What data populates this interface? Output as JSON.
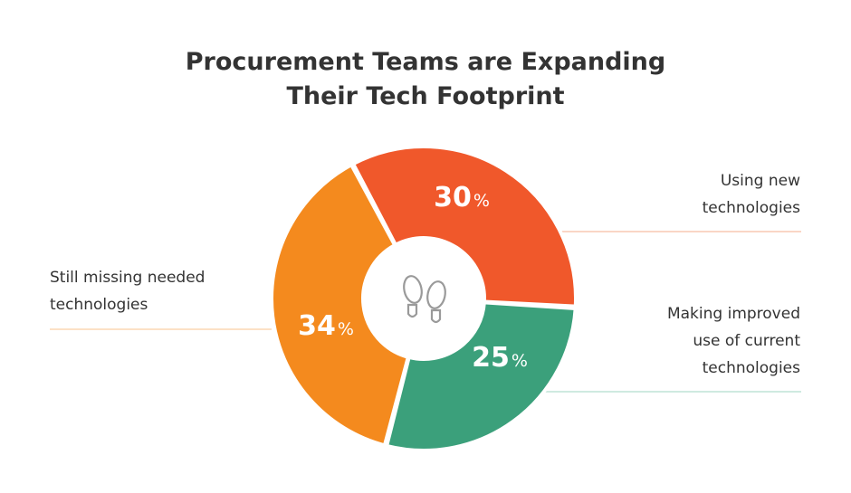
{
  "chart_data": {
    "type": "pie",
    "title_lines": [
      "Procurement Teams are Expanding",
      "Their Tech Footprint"
    ],
    "slices": [
      {
        "value": 30,
        "label_lines": [
          "Using new",
          "technologies"
        ],
        "color": "#F0582B",
        "line_color": "#F9C9B3"
      },
      {
        "value": 25,
        "label_lines": [
          "Making improved",
          "use of current",
          "technologies"
        ],
        "color": "#3BA07B",
        "line_color": "#BFE3D6"
      },
      {
        "value": 34,
        "label_lines": [
          "Still missing needed",
          "technologies"
        ],
        "color": "#F48A1E",
        "line_color": "#FBD7B3"
      }
    ],
    "unit_suffix": "%",
    "center_icon": "footprints-icon"
  }
}
